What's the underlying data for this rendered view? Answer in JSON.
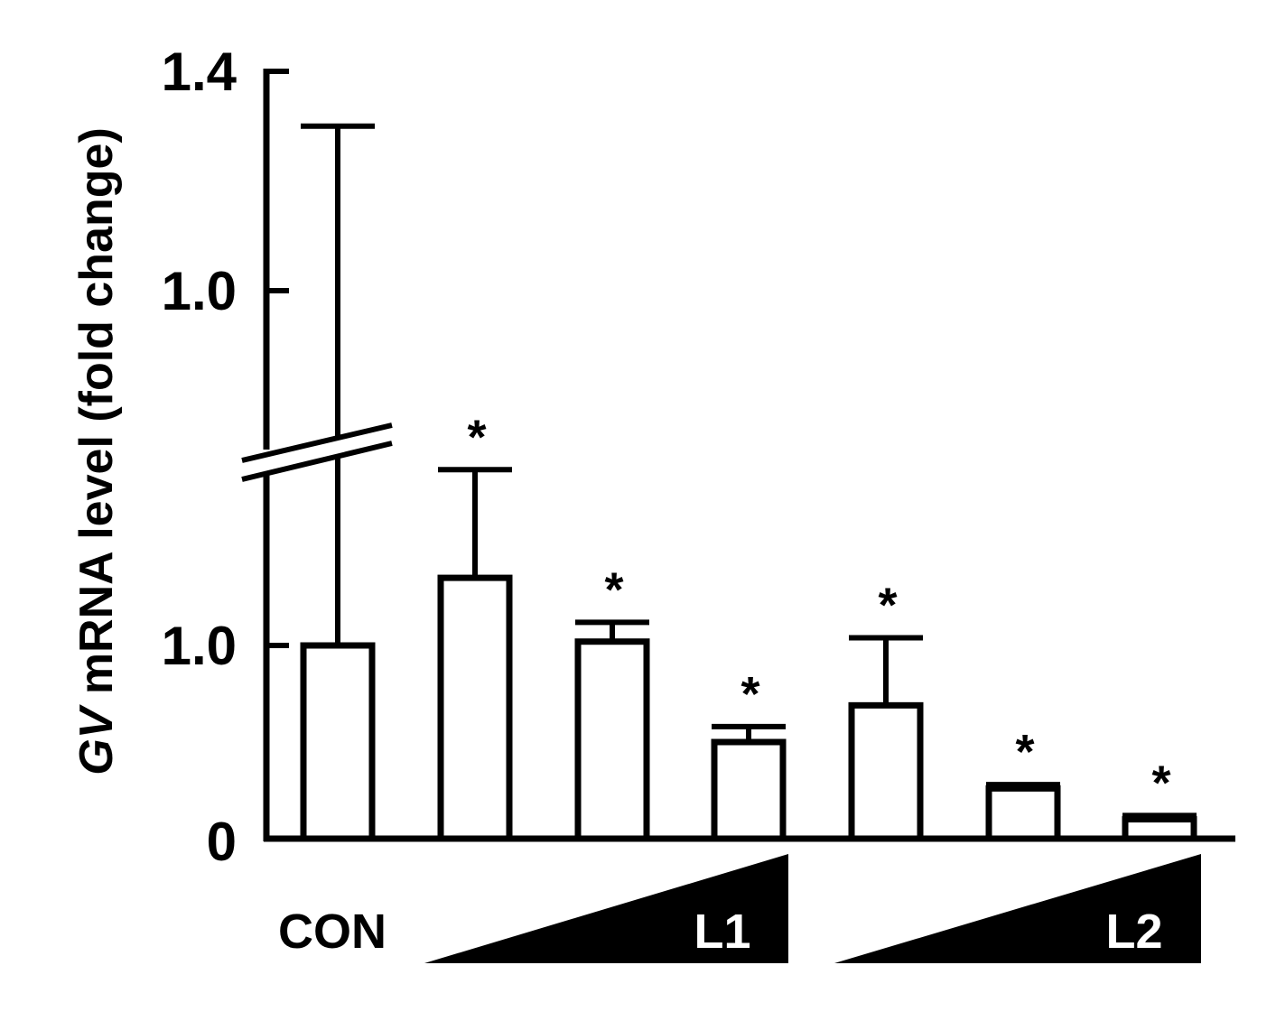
{
  "chart_data": {
    "type": "bar",
    "ylabel_italic": "GV",
    "ylabel_rest": " mRNA level (fold change)",
    "yticks_lower": [
      "0",
      "1.0"
    ],
    "yticks_upper": [
      "1.0",
      "1.4"
    ],
    "axis_break": true,
    "lower_segment_range": [
      0,
      1.0
    ],
    "upper_segment_range": [
      0.65,
      1.4
    ],
    "categories": [
      "CON",
      "L1",
      "L1",
      "L1",
      "L2",
      "L2",
      "L2"
    ],
    "bars": [
      {
        "value": 1.0,
        "error": 0.3,
        "significant": false
      },
      {
        "value": 1.35,
        "error": 0.56,
        "significant": true
      },
      {
        "value": 1.02,
        "error": 0.1,
        "significant": true
      },
      {
        "value": 0.5,
        "error": 0.08,
        "significant": true
      },
      {
        "value": 0.69,
        "error": 0.35,
        "significant": true
      },
      {
        "value": 0.26,
        "error": 0.02,
        "significant": true
      },
      {
        "value": 0.1,
        "error": 0.02,
        "significant": true
      }
    ],
    "significance_marker": "*",
    "control_label": "CON",
    "groups": [
      "L1",
      "L2"
    ]
  }
}
